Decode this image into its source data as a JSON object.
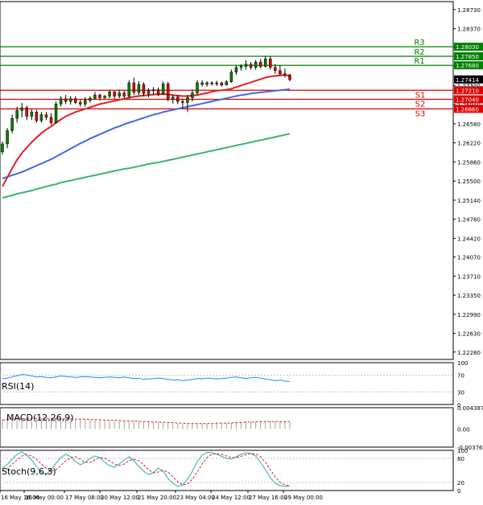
{
  "chart_data": {
    "type": "candlestick",
    "main": {
      "y_ticks": [
        "1.28730",
        "1.28370",
        "1.28020",
        "1.27660",
        "1.27300",
        "1.26940",
        "1.26580",
        "1.26220",
        "1.25860",
        "1.25500",
        "1.25140",
        "1.24780",
        "1.24420",
        "1.24070",
        "1.23710",
        "1.23350",
        "1.22990",
        "1.22630",
        "1.22280"
      ],
      "ylim": [
        1.2214,
        1.2888
      ],
      "x_labels": [
        "16 May 16:00",
        "16 May 00:00",
        "17 May 08:00",
        "20 May 12:00",
        "21 May 20:00",
        "23 May 04:00",
        "24 May 12:00",
        "27 May 16:00",
        "29 May 00:00"
      ],
      "current_price": "1.27414",
      "hidden_tick": "1.27290",
      "resistance": [
        {
          "name": "R3",
          "value": "1.28030"
        },
        {
          "name": "R2",
          "value": "1.27850"
        },
        {
          "name": "R1",
          "value": "1.27680"
        }
      ],
      "support": [
        {
          "name": "S1",
          "value": "1.27210"
        },
        {
          "name": "S2",
          "value": "1.27040"
        },
        {
          "name": "S3",
          "value": "1.26860"
        }
      ],
      "candles": [
        {
          "o": 1.2605,
          "h": 1.2625,
          "l": 1.26,
          "c": 1.262
        },
        {
          "o": 1.262,
          "h": 1.265,
          "l": 1.2612,
          "c": 1.2645
        },
        {
          "o": 1.2645,
          "h": 1.2675,
          "l": 1.264,
          "c": 1.2668
        },
        {
          "o": 1.2668,
          "h": 1.269,
          "l": 1.266,
          "c": 1.2683
        },
        {
          "o": 1.2683,
          "h": 1.2697,
          "l": 1.267,
          "c": 1.2688
        },
        {
          "o": 1.2688,
          "h": 1.2692,
          "l": 1.2665,
          "c": 1.2672
        },
        {
          "o": 1.2672,
          "h": 1.2685,
          "l": 1.2665,
          "c": 1.268
        },
        {
          "o": 1.268,
          "h": 1.2684,
          "l": 1.266,
          "c": 1.2664
        },
        {
          "o": 1.2664,
          "h": 1.268,
          "l": 1.266,
          "c": 1.2675
        },
        {
          "o": 1.2675,
          "h": 1.268,
          "l": 1.2665,
          "c": 1.267
        },
        {
          "o": 1.267,
          "h": 1.2678,
          "l": 1.2656,
          "c": 1.266
        },
        {
          "o": 1.266,
          "h": 1.27,
          "l": 1.2658,
          "c": 1.2695
        },
        {
          "o": 1.2695,
          "h": 1.271,
          "l": 1.269,
          "c": 1.2705
        },
        {
          "o": 1.2705,
          "h": 1.2712,
          "l": 1.2695,
          "c": 1.27
        },
        {
          "o": 1.27,
          "h": 1.271,
          "l": 1.2694,
          "c": 1.2705
        },
        {
          "o": 1.2705,
          "h": 1.271,
          "l": 1.2695,
          "c": 1.2698
        },
        {
          "o": 1.2698,
          "h": 1.2704,
          "l": 1.269,
          "c": 1.2695
        },
        {
          "o": 1.2695,
          "h": 1.2708,
          "l": 1.269,
          "c": 1.2702
        },
        {
          "o": 1.2702,
          "h": 1.271,
          "l": 1.2698,
          "c": 1.2706
        },
        {
          "o": 1.2706,
          "h": 1.2718,
          "l": 1.2704,
          "c": 1.2712
        },
        {
          "o": 1.2712,
          "h": 1.2715,
          "l": 1.2702,
          "c": 1.2707
        },
        {
          "o": 1.2707,
          "h": 1.2712,
          "l": 1.2705,
          "c": 1.271
        },
        {
          "o": 1.271,
          "h": 1.2722,
          "l": 1.2706,
          "c": 1.2718
        },
        {
          "o": 1.2718,
          "h": 1.272,
          "l": 1.2705,
          "c": 1.271
        },
        {
          "o": 1.271,
          "h": 1.2722,
          "l": 1.2706,
          "c": 1.2716
        },
        {
          "o": 1.2716,
          "h": 1.272,
          "l": 1.2706,
          "c": 1.271
        },
        {
          "o": 1.271,
          "h": 1.274,
          "l": 1.2706,
          "c": 1.2735
        },
        {
          "o": 1.2735,
          "h": 1.2745,
          "l": 1.2712,
          "c": 1.2717
        },
        {
          "o": 1.2717,
          "h": 1.2738,
          "l": 1.2712,
          "c": 1.2732
        },
        {
          "o": 1.2732,
          "h": 1.2736,
          "l": 1.271,
          "c": 1.2715
        },
        {
          "o": 1.2715,
          "h": 1.2725,
          "l": 1.2708,
          "c": 1.272
        },
        {
          "o": 1.272,
          "h": 1.2727,
          "l": 1.2712,
          "c": 1.2722
        },
        {
          "o": 1.2722,
          "h": 1.2726,
          "l": 1.271,
          "c": 1.2714
        },
        {
          "o": 1.2714,
          "h": 1.2738,
          "l": 1.2712,
          "c": 1.2733
        },
        {
          "o": 1.2733,
          "h": 1.2737,
          "l": 1.27,
          "c": 1.2704
        },
        {
          "o": 1.2704,
          "h": 1.2712,
          "l": 1.2696,
          "c": 1.2708
        },
        {
          "o": 1.2708,
          "h": 1.2712,
          "l": 1.2695,
          "c": 1.27
        },
        {
          "o": 1.27,
          "h": 1.2705,
          "l": 1.2688,
          "c": 1.2698
        },
        {
          "o": 1.2698,
          "h": 1.2712,
          "l": 1.268,
          "c": 1.2707
        },
        {
          "o": 1.2707,
          "h": 1.2722,
          "l": 1.27,
          "c": 1.2716
        },
        {
          "o": 1.2716,
          "h": 1.274,
          "l": 1.2712,
          "c": 1.2735
        },
        {
          "o": 1.2735,
          "h": 1.274,
          "l": 1.2728,
          "c": 1.2732
        },
        {
          "o": 1.2732,
          "h": 1.2738,
          "l": 1.2728,
          "c": 1.2735
        },
        {
          "o": 1.2735,
          "h": 1.2738,
          "l": 1.273,
          "c": 1.2733
        },
        {
          "o": 1.2733,
          "h": 1.2739,
          "l": 1.2729,
          "c": 1.2735
        },
        {
          "o": 1.2735,
          "h": 1.2737,
          "l": 1.2728,
          "c": 1.2731
        },
        {
          "o": 1.2731,
          "h": 1.274,
          "l": 1.273,
          "c": 1.2737
        },
        {
          "o": 1.2737,
          "h": 1.276,
          "l": 1.2735,
          "c": 1.2755
        },
        {
          "o": 1.2755,
          "h": 1.2768,
          "l": 1.275,
          "c": 1.2764
        },
        {
          "o": 1.2764,
          "h": 1.277,
          "l": 1.2758,
          "c": 1.2766
        },
        {
          "o": 1.2766,
          "h": 1.2778,
          "l": 1.276,
          "c": 1.277
        },
        {
          "o": 1.277,
          "h": 1.2774,
          "l": 1.276,
          "c": 1.2764
        },
        {
          "o": 1.2764,
          "h": 1.2778,
          "l": 1.276,
          "c": 1.2774
        },
        {
          "o": 1.2774,
          "h": 1.278,
          "l": 1.2762,
          "c": 1.2766
        },
        {
          "o": 1.2766,
          "h": 1.2786,
          "l": 1.2764,
          "c": 1.278
        },
        {
          "o": 1.278,
          "h": 1.2785,
          "l": 1.276,
          "c": 1.2764
        },
        {
          "o": 1.2764,
          "h": 1.277,
          "l": 1.2752,
          "c": 1.2758
        },
        {
          "o": 1.2758,
          "h": 1.2768,
          "l": 1.2748,
          "c": 1.2752
        },
        {
          "o": 1.2752,
          "h": 1.2762,
          "l": 1.2745,
          "c": 1.275
        },
        {
          "o": 1.275,
          "h": 1.2752,
          "l": 1.2738,
          "c": 1.2741
        }
      ],
      "ma_red": [
        1.254,
        1.2557,
        1.2574,
        1.259,
        1.2603,
        1.2613,
        1.2623,
        1.2632,
        1.264,
        1.2647,
        1.2653,
        1.266,
        1.2666,
        1.2672,
        1.2676,
        1.268,
        1.2683,
        1.2686,
        1.2689,
        1.2692,
        1.2695,
        1.2697,
        1.2699,
        1.2701,
        1.2703,
        1.2705,
        1.2707,
        1.2709,
        1.271,
        1.2711,
        1.2712,
        1.2713,
        1.2713,
        1.2714,
        1.2713,
        1.2712,
        1.2711,
        1.271,
        1.271,
        1.2711,
        1.2712,
        1.2714,
        1.2716,
        1.2718,
        1.272,
        1.2721,
        1.2722,
        1.2724,
        1.2727,
        1.273,
        1.2733,
        1.2736,
        1.2739,
        1.2742,
        1.2745,
        1.2747,
        1.2748,
        1.2749,
        1.275,
        1.2748
      ],
      "ma_blue": [
        1.2555,
        1.2558,
        1.2561,
        1.2564,
        1.2567,
        1.2571,
        1.2575,
        1.2579,
        1.2583,
        1.2587,
        1.2591,
        1.2596,
        1.2601,
        1.2606,
        1.2611,
        1.2616,
        1.2621,
        1.2625,
        1.263,
        1.2634,
        1.2638,
        1.2642,
        1.2646,
        1.265,
        1.2653,
        1.2657,
        1.266,
        1.2663,
        1.2666,
        1.2669,
        1.2672,
        1.2675,
        1.2677,
        1.268,
        1.2682,
        1.2684,
        1.2686,
        1.2688,
        1.269,
        1.2692,
        1.2694,
        1.2696,
        1.2698,
        1.27,
        1.2702,
        1.2704,
        1.2706,
        1.2708,
        1.271,
        1.2712,
        1.2713,
        1.2715,
        1.2716,
        1.2717,
        1.2718,
        1.2719,
        1.272,
        1.2721,
        1.2722,
        1.2723
      ],
      "ma_green": [
        1.2518,
        1.2521,
        1.2523,
        1.2526,
        1.2528,
        1.253,
        1.2532,
        1.2535,
        1.2537,
        1.254,
        1.2542,
        1.2544,
        1.2547,
        1.2549,
        1.2551,
        1.2553,
        1.2555,
        1.2557,
        1.2559,
        1.2561,
        1.2563,
        1.2565,
        1.2567,
        1.2569,
        1.2571,
        1.2573,
        1.2574,
        1.2576,
        1.2578,
        1.258,
        1.2582,
        1.2584,
        1.2585,
        1.2587,
        1.2589,
        1.2591,
        1.2593,
        1.2595,
        1.2597,
        1.2599,
        1.2601,
        1.2603,
        1.2605,
        1.2607,
        1.2609,
        1.2611,
        1.2613,
        1.2615,
        1.2617,
        1.2619,
        1.2621,
        1.2623,
        1.2625,
        1.2627,
        1.2629,
        1.2631,
        1.2633,
        1.2635,
        1.2637,
        1.2639
      ]
    },
    "rsi": {
      "label": "RSI(14)",
      "ticks": [
        "100",
        "70",
        "30",
        "0"
      ],
      "ylim": [
        0,
        100
      ],
      "values": [
        62,
        63,
        66,
        69,
        72,
        71,
        68,
        66,
        67,
        65,
        64,
        66,
        68,
        67,
        66,
        65,
        66,
        67,
        66,
        65,
        64,
        65,
        66,
        65,
        64,
        66,
        64,
        62,
        63,
        60,
        61,
        62,
        63,
        62,
        60,
        58,
        59,
        57,
        58,
        60,
        62,
        61,
        63,
        62,
        61,
        62,
        63,
        65,
        66,
        64,
        62,
        64,
        65,
        63,
        61,
        59,
        57,
        58,
        56,
        55
      ]
    },
    "macd": {
      "label": "MACD(12,26,9)",
      "ticks": [
        "0.004387",
        "0.00",
        "-0.003769"
      ],
      "ylim": [
        -0.003769,
        0.004387
      ],
      "histogram": [
        0.002,
        0.0021,
        0.0022,
        0.0023,
        0.0023,
        0.0023,
        0.0023,
        0.0022,
        0.0022,
        0.0021,
        0.0021,
        0.0021,
        0.0021,
        0.002,
        0.002,
        0.0019,
        0.0019,
        0.0019,
        0.0018,
        0.0018,
        0.0018,
        0.0017,
        0.0017,
        0.0017,
        0.0016,
        0.0016,
        0.0016,
        0.0015,
        0.0015,
        0.0014,
        0.0014,
        0.0013,
        0.0013,
        0.0013,
        0.0012,
        0.0011,
        0.0011,
        0.001,
        0.001,
        0.001,
        0.0011,
        0.0011,
        0.0011,
        0.0012,
        0.0012,
        0.0012,
        0.0012,
        0.0013,
        0.0014,
        0.0014,
        0.0015,
        0.0015,
        0.0015,
        0.0016,
        0.0016,
        0.0016,
        0.0015,
        0.0015,
        0.0014,
        0.0014
      ],
      "signal": [
        0.0018,
        0.0019,
        0.002,
        0.0021,
        0.0021,
        0.0022,
        0.0022,
        0.0022,
        0.0022,
        0.0022,
        0.0022,
        0.0021,
        0.0021,
        0.0021,
        0.0021,
        0.002,
        0.002,
        0.002,
        0.0019,
        0.0019,
        0.0019,
        0.0018,
        0.0018,
        0.0018,
        0.0017,
        0.0017,
        0.0016,
        0.0016,
        0.0016,
        0.0015,
        0.0015,
        0.0014,
        0.0014,
        0.0014,
        0.0013,
        0.0013,
        0.0012,
        0.0012,
        0.0011,
        0.0011,
        0.0011,
        0.0011,
        0.0011,
        0.0011,
        0.0012,
        0.0012,
        0.0012,
        0.0012,
        0.0013,
        0.0013,
        0.0014,
        0.0014,
        0.0014,
        0.0015,
        0.0015,
        0.0015,
        0.0015,
        0.0015,
        0.0015,
        0.0015
      ]
    },
    "stoch": {
      "label": "Stoch(9,6,3)",
      "ticks": [
        "100",
        "80",
        "20",
        "0"
      ],
      "ylim": [
        0,
        100
      ],
      "main": [
        55,
        65,
        78,
        90,
        96,
        88,
        76,
        60,
        45,
        40,
        52,
        68,
        82,
        90,
        84,
        72,
        64,
        70,
        80,
        86,
        82,
        70,
        62,
        58,
        66,
        76,
        84,
        74,
        60,
        48,
        40,
        44,
        56,
        48,
        30,
        18,
        10,
        14,
        28,
        48,
        72,
        88,
        95,
        94,
        90,
        85,
        80,
        78,
        84,
        90,
        94,
        92,
        86,
        70,
        52,
        32,
        18,
        12,
        10,
        12
      ],
      "signal": [
        48,
        55,
        65,
        76,
        86,
        90,
        86,
        78,
        66,
        55,
        48,
        52,
        62,
        74,
        82,
        84,
        78,
        70,
        70,
        76,
        82,
        80,
        74,
        66,
        62,
        66,
        74,
        78,
        74,
        64,
        52,
        44,
        46,
        50,
        46,
        34,
        22,
        14,
        16,
        28,
        46,
        66,
        82,
        90,
        92,
        90,
        86,
        82,
        82,
        85,
        89,
        92,
        91,
        84,
        70,
        52,
        34,
        20,
        14,
        11
      ]
    }
  }
}
